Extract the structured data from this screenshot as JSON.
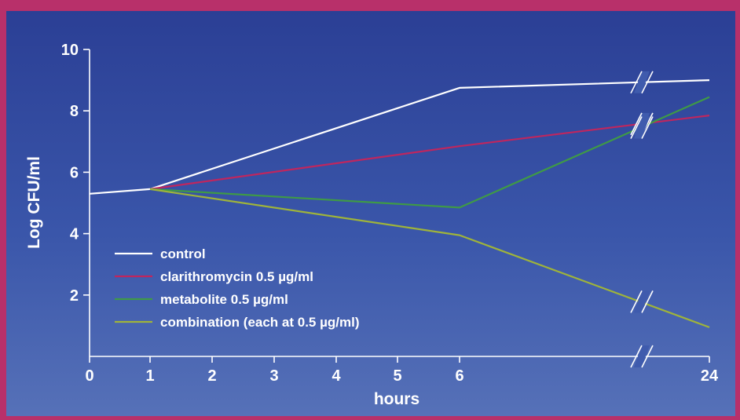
{
  "chart_data": {
    "type": "line",
    "xlabel": "hours",
    "ylabel": "Log CFU/ml",
    "x_ticks": [
      0,
      1,
      2,
      3,
      4,
      5,
      6,
      24
    ],
    "y_ticks": [
      2,
      4,
      6,
      8,
      10
    ],
    "ylim": [
      0,
      10
    ],
    "axis_break": "between 6 and 24 hours",
    "legend_position": "lower-left",
    "grid": false,
    "series": [
      {
        "name": "control",
        "color": "#ffffff",
        "points": [
          [
            0,
            5.3
          ],
          [
            1,
            5.45
          ],
          [
            6,
            8.75
          ],
          [
            24,
            9.0
          ]
        ]
      },
      {
        "name": "clarithromycin 0.5 µg/ml",
        "color": "#c0265e",
        "points": [
          [
            1,
            5.45
          ],
          [
            6,
            6.85
          ],
          [
            24,
            7.85
          ]
        ]
      },
      {
        "name": "metabolite 0.5 µg/ml",
        "color": "#3f9a46",
        "points": [
          [
            1,
            5.45
          ],
          [
            6,
            4.85
          ],
          [
            24,
            8.45
          ]
        ]
      },
      {
        "name": "combination (each at 0.5 µg/ml)",
        "color": "#9fb43a",
        "points": [
          [
            1,
            5.45
          ],
          [
            6,
            3.95
          ],
          [
            24,
            0.95
          ]
        ]
      }
    ]
  }
}
